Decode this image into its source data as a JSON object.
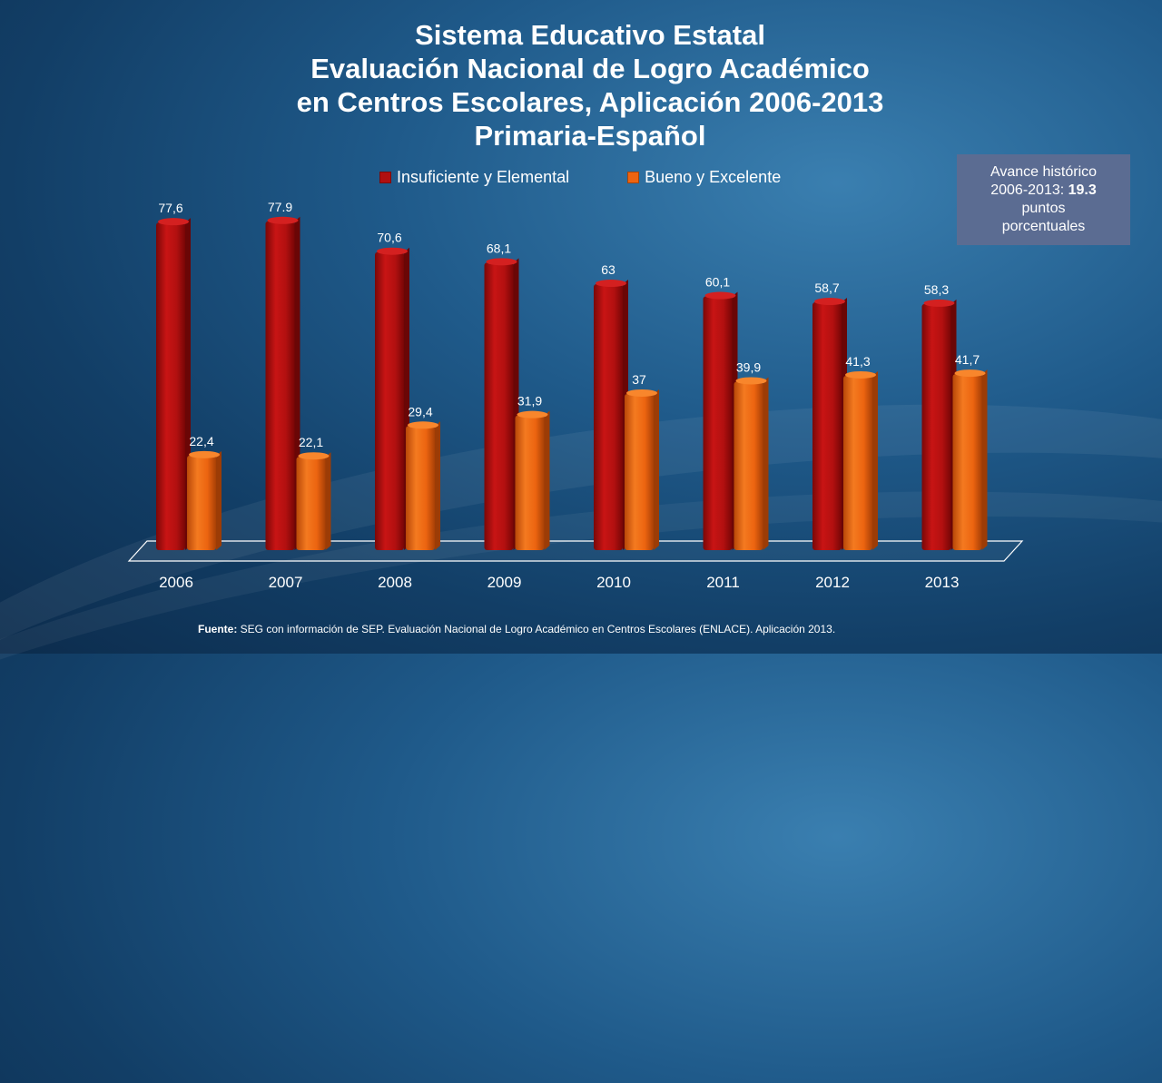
{
  "chart_data": {
    "type": "bar",
    "title_lines": [
      "Sistema Educativo Estatal",
      "Evaluación Nacional de Logro Académico",
      "en Centros Escolares, Aplicación 2006-2013",
      "Primaria-Español"
    ],
    "categories": [
      "2006",
      "2007",
      "2008",
      "2009",
      "2010",
      "2011",
      "2012",
      "2013"
    ],
    "series": [
      {
        "name": "Insuficiente y Elemental",
        "color": "#b01010",
        "values": [
          77.6,
          77.9,
          70.6,
          68.1,
          63,
          60.1,
          58.7,
          58.3
        ],
        "labels": [
          "77,6",
          "77.9",
          "70,6",
          "68,1",
          "63",
          "60,1",
          "58,7",
          "58,3"
        ]
      },
      {
        "name": "Bueno y Excelente",
        "color": "#ee6410",
        "values": [
          22.4,
          22.1,
          29.4,
          31.9,
          37,
          39.9,
          41.3,
          41.7
        ],
        "labels": [
          "22,4",
          "22,1",
          "29,4",
          "31,9",
          "37",
          "39,9",
          "41,3",
          "41,7"
        ]
      }
    ],
    "ylim": [
      0,
      80
    ],
    "grid": false,
    "legend_position": "top"
  },
  "note": {
    "line1": "Avance histórico",
    "line2_prefix": "2006-2013: ",
    "line2_value": "19.3",
    "line3": "puntos",
    "line4": "porcentuales"
  },
  "footer": {
    "label": "Fuente:",
    "text": " SEG con información de SEP. Evaluación Nacional de Logro Académico en Centros Escolares (ENLACE). Aplicación 2013."
  }
}
